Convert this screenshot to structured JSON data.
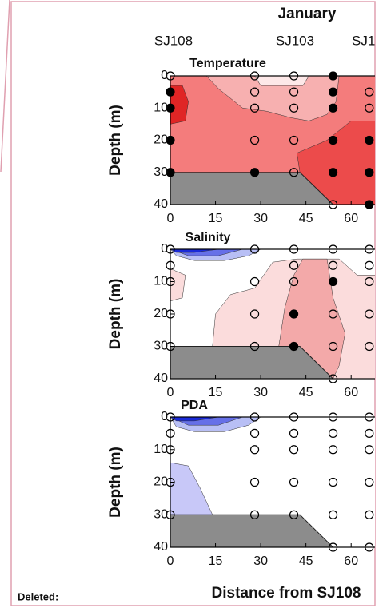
{
  "title": "January",
  "station_labels": [
    "SJ108",
    "SJ103",
    "SJ1"
  ],
  "x_label": "Distance from SJ108",
  "note": "Deleted:",
  "chart_data": [
    {
      "type": "contour",
      "title": "Temperature",
      "ylabel": "Depth (m)",
      "xlim": [
        0,
        70
      ],
      "ylim": [
        0,
        40
      ],
      "y_inverted": true,
      "xticks": [
        0,
        15,
        30,
        45,
        60
      ],
      "yticks": [
        0,
        10,
        20,
        30,
        40
      ],
      "series": [
        {
          "color": "#000000",
          "x": [
            0,
            0,
            0,
            0,
            28,
            54,
            54,
            54,
            54,
            54,
            66,
            66,
            66
          ],
          "y": [
            5,
            10,
            20,
            30,
            30,
            0,
            5,
            10,
            20,
            30,
            20,
            30,
            40
          ]
        },
        {
          "color": "none",
          "x": [
            0,
            28,
            28,
            28,
            28,
            41,
            41,
            41,
            41,
            41,
            54,
            66,
            66
          ],
          "y": [
            0,
            0,
            5,
            10,
            20,
            0,
            5,
            10,
            20,
            30,
            40,
            5,
            10
          ]
        }
      ]
    },
    {
      "type": "contour",
      "title": "Salinity",
      "ylabel": "Depth (m)",
      "xlim": [
        0,
        70
      ],
      "ylim": [
        0,
        40
      ],
      "y_inverted": true,
      "xticks": [
        0,
        15,
        30,
        45,
        60
      ],
      "yticks": [
        0,
        10,
        20,
        30,
        40
      ],
      "series": [
        {
          "color": "#000000",
          "x": [
            41,
            41,
            54
          ],
          "y": [
            20,
            30,
            10
          ]
        },
        {
          "color": "none",
          "x": [
            0,
            0,
            0,
            0,
            0,
            28,
            28,
            28,
            28,
            41,
            41,
            41,
            54,
            54,
            54,
            54,
            54,
            66,
            66,
            66,
            66,
            66
          ],
          "y": [
            0,
            5,
            10,
            20,
            30,
            0,
            10,
            20,
            30,
            0,
            5,
            10,
            0,
            5,
            20,
            30,
            40,
            0,
            5,
            10,
            20,
            30
          ]
        }
      ]
    },
    {
      "type": "contour",
      "title": "PDA",
      "ylabel": "Depth (m)",
      "xlim": [
        0,
        70
      ],
      "ylim": [
        0,
        40
      ],
      "y_inverted": true,
      "xticks": [
        0,
        15,
        30,
        45,
        60
      ],
      "yticks": [
        0,
        10,
        20,
        30,
        40
      ],
      "series": [
        {
          "color": "#000000",
          "x": [],
          "y": []
        },
        {
          "color": "none",
          "x": [
            0,
            0,
            0,
            0,
            0,
            28,
            28,
            28,
            28,
            28,
            41,
            41,
            41,
            41,
            41,
            54,
            54,
            54,
            54,
            54,
            54,
            66,
            66,
            66,
            66,
            66,
            66
          ],
          "y": [
            0,
            5,
            10,
            20,
            30,
            0,
            5,
            10,
            20,
            30,
            0,
            5,
            10,
            20,
            30,
            0,
            5,
            10,
            20,
            30,
            40,
            0,
            5,
            10,
            20,
            30,
            40
          ]
        }
      ]
    }
  ]
}
